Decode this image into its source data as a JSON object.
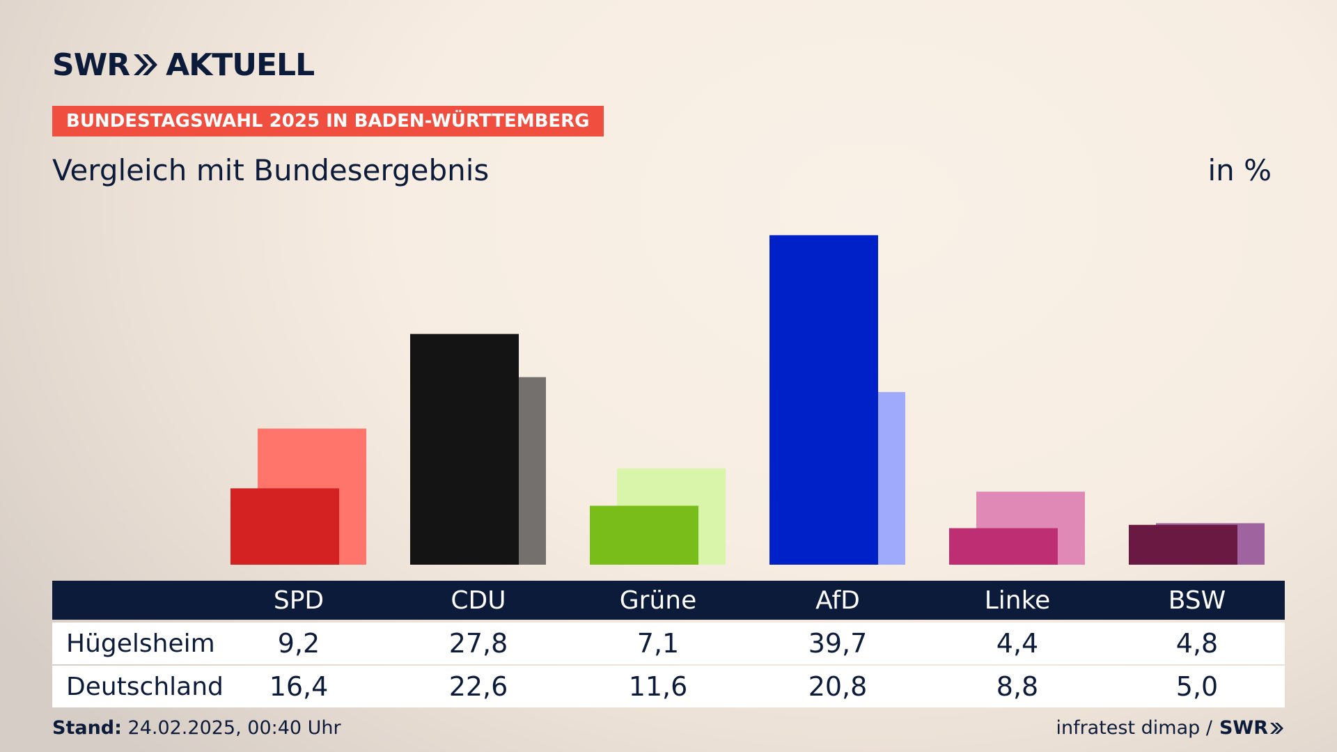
{
  "brand": {
    "logo_left": "SWR",
    "logo_right": "AKTUELL"
  },
  "banner": "BUNDESTAGSWAHL 2025 IN BADEN-WÜRTTEMBERG",
  "subtitle": "Vergleich mit Bundesergebnis",
  "unit": "in %",
  "row_labels": [
    "Hügelsheim",
    "Deutschland"
  ],
  "footer": {
    "stand_label": "Stand:",
    "stand_value": "24.02.2025, 00:40 Uhr",
    "source": "infratest dimap /",
    "source_logo": "SWR"
  },
  "chart_data": {
    "type": "bar",
    "categories": [
      "SPD",
      "CDU",
      "Grüne",
      "AfD",
      "Linke",
      "BSW"
    ],
    "series": [
      {
        "name": "Hügelsheim",
        "values": [
          9.2,
          27.8,
          7.1,
          39.7,
          4.4,
          4.8
        ],
        "labels": [
          "9,2",
          "27,8",
          "7,1",
          "39,7",
          "4,4",
          "4,8"
        ]
      },
      {
        "name": "Deutschland",
        "values": [
          16.4,
          22.6,
          11.6,
          20.8,
          8.8,
          5.0
        ],
        "labels": [
          "16,4",
          "22,6",
          "11,6",
          "20,8",
          "8,8",
          "5,0"
        ]
      }
    ],
    "colors_primary": [
      "#d42222",
      "#141414",
      "#79bd1b",
      "#0020c8",
      "#bd2f72",
      "#6a1a42"
    ],
    "colors_secondary": [
      "#ff756b",
      "#73706d",
      "#d8f5aa",
      "#9faafc",
      "#e089b7",
      "#9f649f"
    ],
    "ylim": [
      0,
      42
    ],
    "xlabel": "",
    "ylabel": ""
  }
}
